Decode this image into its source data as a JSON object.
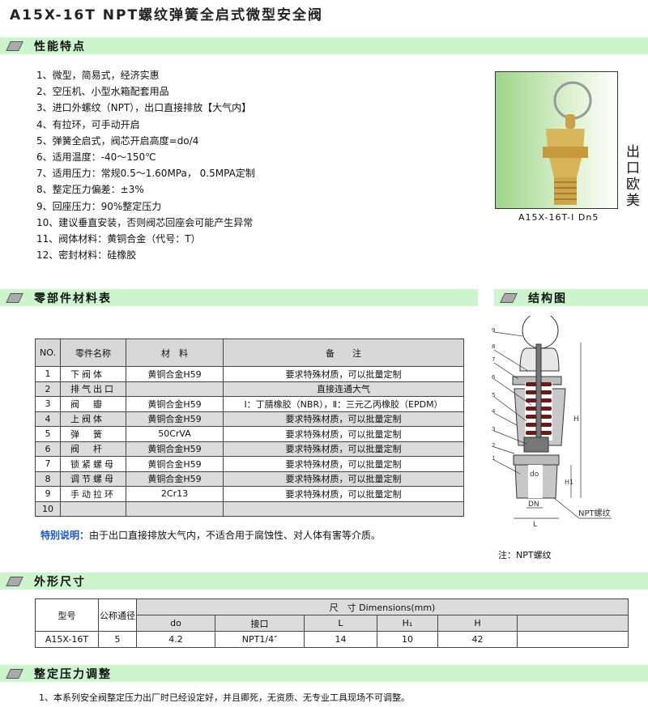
{
  "title": "A15X-16T  NPT螺纹弹簧全启式微型安全阀",
  "sections": {
    "features": "性能特点",
    "parts": "零部件材料表",
    "structure": "结构图",
    "dimensions": "外形尺寸",
    "pressure": "整定压力调整"
  },
  "features": [
    "1、微型，简易式，经济实惠",
    "2、空压机、小型水箱配套用品",
    "3、进口外螺纹（NPT），出口直接排放【大气内】",
    "4、有拉环，可手动开启",
    "5、弹簧全启式，阀芯开启高度=do/4",
    "6、适用温度：-40～150℃",
    "7、适用压力：常规0.5～1.60MPa，  0.5MPA定制",
    "8、整定压力偏差：±3%",
    "9、回座压力：90%整定压力",
    "10、建议垂直安装，否则阀芯回座会可能产生异常",
    "11、阀体材料：黄铜合金（代号：T）",
    "12、密封材料：硅橡胶"
  ],
  "photo": {
    "caption": "A15X-16T-Ⅰ  Dn5",
    "side_text": "出口欧美"
  },
  "parts_table": {
    "headers": [
      "NO.",
      "零件名称",
      "材　料",
      "备　　注"
    ],
    "rows": [
      [
        "1",
        "下阀体",
        "黄铜合金H59",
        "要求特殊材质，可以批量定制"
      ],
      [
        "2",
        "排气出口",
        "",
        "直接连通大气"
      ],
      [
        "3",
        "阀　瓣",
        "黄铜合金H59",
        "Ⅰ：丁腈橡胶（NBR），Ⅱ：三元乙丙橡胶（EPDM）"
      ],
      [
        "4",
        "上阀体",
        "黄铜合金H59",
        "要求特殊材质，可以批量定制"
      ],
      [
        "5",
        "弹　簧",
        "50CrVA",
        "要求特殊材质，可以批量定制"
      ],
      [
        "6",
        "阀　杆",
        "黄铜合金H59",
        "要求特殊材质，可以批量定制"
      ],
      [
        "7",
        "锁紧螺母",
        "黄铜合金H59",
        "要求特殊材质，可以批量定制"
      ],
      [
        "8",
        "调节螺母",
        "黄铜合金H59",
        "要求特殊材质，可以批量定制"
      ],
      [
        "9",
        "手动拉环",
        "2Cr13",
        "要求特殊材质，可以批量定制"
      ],
      [
        "10",
        "",
        "",
        ""
      ]
    ]
  },
  "special_note": {
    "label": "特别说明：",
    "text": "由于出口直接排放大气内，不适合用于腐蚀性、对人体有害等介质。"
  },
  "diagram": {
    "labels": [
      "1",
      "2",
      "3",
      "4",
      "5",
      "6",
      "7",
      "8",
      "9"
    ],
    "H": "H",
    "H1": "H1",
    "do": "do",
    "DN": "DN",
    "L": "L",
    "thread": "NPT螺纹",
    "note": "注：NPT螺纹"
  },
  "dims_table": {
    "model_h": "型号",
    "dn_h": "公称通径",
    "group_h": "尺　寸  Dimensions(mm)",
    "cols": [
      "do",
      "接口",
      "L",
      "H₁",
      "H",
      ""
    ],
    "row": [
      "A15X-16T",
      "5",
      "4.2",
      "NPT1/4″",
      "14",
      "10",
      "42",
      ""
    ]
  },
  "pressure_text": "1、本系列安全阀整定压力出厂时已经设定好，并且卿死，无资质、无专业工具现场不可调整。",
  "colors": {
    "section_bar": "#cdf5cd",
    "note_label": "#1a55c8",
    "spring": "#6b1a1a"
  }
}
